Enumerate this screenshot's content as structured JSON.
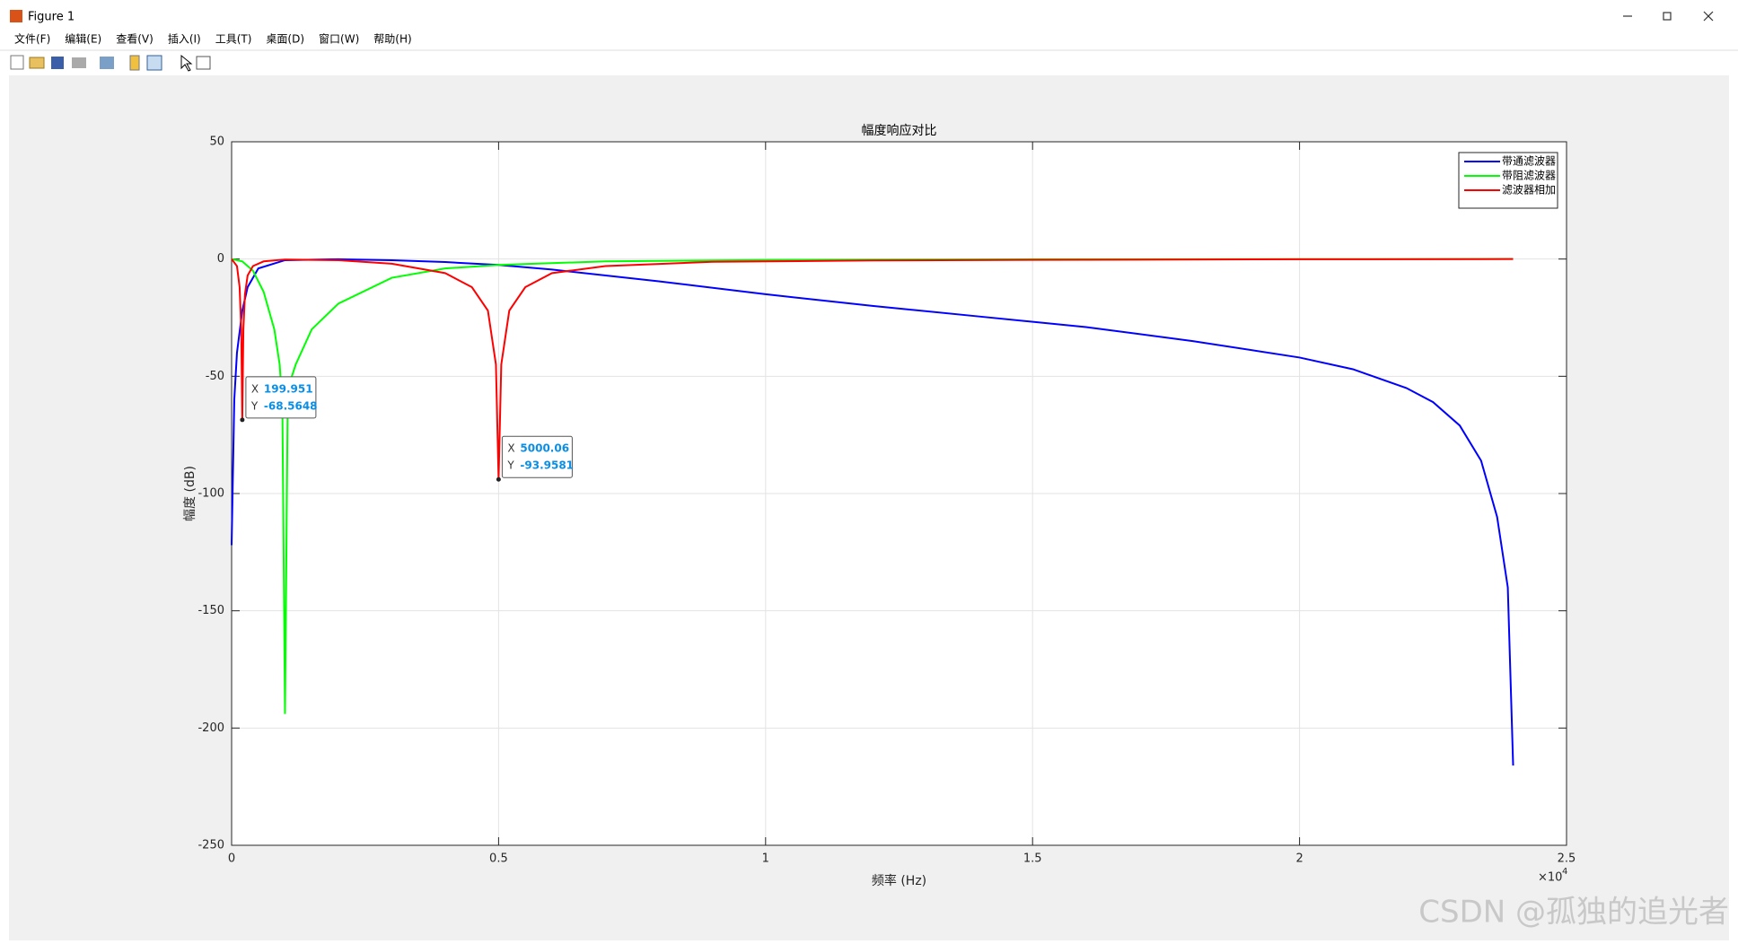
{
  "window": {
    "title": "Figure 1",
    "menu": [
      "文件(F)",
      "编辑(E)",
      "查看(V)",
      "插入(I)",
      "工具(T)",
      "桌面(D)",
      "窗口(W)",
      "帮助(H)"
    ]
  },
  "watermark": "CSDN @孤独的追光者",
  "chart_data": {
    "type": "line",
    "title": "幅度响应对比",
    "x_label": "频率 (Hz)",
    "y_label": "幅度 (dB)",
    "x_multiplier": "×10",
    "x_multiplier_exponent": "4",
    "xlim": [
      0,
      25000
    ],
    "xticks": [
      0,
      {
        "value": 5000,
        "label": "0.5"
      },
      {
        "value": 10000,
        "label": "1"
      },
      {
        "value": 15000,
        "label": "1.5"
      },
      {
        "value": 20000,
        "label": "2"
      },
      {
        "value": 25000,
        "label": "2.5"
      }
    ],
    "ylim": [
      -250,
      50
    ],
    "yticks": [
      50,
      0,
      -50,
      -100,
      -150,
      -200,
      -250
    ],
    "grid": true,
    "legend": "northeast",
    "series": [
      {
        "name": "带通滤波器",
        "color": "#0000ff",
        "x": [
          0,
          50,
          100,
          200,
          300,
          500,
          1000,
          2000,
          3000,
          4000,
          5000,
          6000,
          8000,
          10000,
          12000,
          14000,
          16000,
          18000,
          20000,
          21000,
          22000,
          22500,
          23000,
          23400,
          23700,
          23900,
          24000
        ],
        "values": [
          -122,
          -60,
          -40,
          -22,
          -12,
          -4,
          -0.5,
          -0.1,
          -0.5,
          -1.3,
          -2.5,
          -4.5,
          -9.5,
          -15,
          -20,
          -24.5,
          -29,
          -35,
          -42,
          -47,
          -55,
          -61,
          -71,
          -86,
          -110,
          -140,
          -216
        ]
      },
      {
        "name": "带阻滤波器",
        "color": "#00ff00",
        "x": [
          0,
          200,
          400,
          600,
          800,
          900,
          950,
          1000,
          1050,
          1100,
          1200,
          1500,
          2000,
          3000,
          4000,
          5000,
          7000,
          10000,
          15000,
          24000
        ],
        "values": [
          0,
          -1,
          -5,
          -14,
          -30,
          -45,
          -62,
          -194,
          -62,
          -52,
          -45,
          -30,
          -19,
          -8,
          -4,
          -2.5,
          -1,
          -0.4,
          -0.1,
          0
        ]
      },
      {
        "name": "滤波器相加",
        "color": "#ff0000",
        "x": [
          0,
          100,
          150,
          180,
          199.951,
          220,
          250,
          300,
          400,
          600,
          1000,
          2000,
          3000,
          4000,
          4500,
          4800,
          4950,
          5000.06,
          5050,
          5200,
          5500,
          6000,
          7000,
          9000,
          12000,
          16000,
          20000,
          24000
        ],
        "values": [
          0,
          -3,
          -12,
          -30,
          -68.5648,
          -30,
          -15,
          -7,
          -3,
          -1,
          -0.2,
          -0.5,
          -2,
          -6,
          -12,
          -22,
          -45,
          -93.9581,
          -45,
          -22,
          -12,
          -6,
          -3,
          -1.2,
          -0.6,
          -0.3,
          -0.1,
          0
        ]
      }
    ],
    "datatips": [
      {
        "x_prefix": "X",
        "y_prefix": "Y",
        "x": 199.951,
        "y": -68.5648
      },
      {
        "x_prefix": "X",
        "y_prefix": "Y",
        "x": 5000.06,
        "y": -93.9581
      }
    ]
  }
}
